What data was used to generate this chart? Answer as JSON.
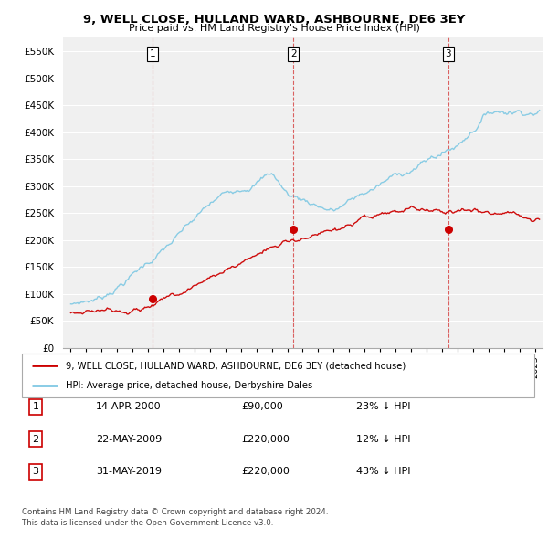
{
  "title": "9, WELL CLOSE, HULLAND WARD, ASHBOURNE, DE6 3EY",
  "subtitle": "Price paid vs. HM Land Registry's House Price Index (HPI)",
  "ylabel_ticks": [
    "£0",
    "£50K",
    "£100K",
    "£150K",
    "£200K",
    "£250K",
    "£300K",
    "£350K",
    "£400K",
    "£450K",
    "£500K",
    "£550K"
  ],
  "ytick_values": [
    0,
    50000,
    100000,
    150000,
    200000,
    250000,
    300000,
    350000,
    400000,
    450000,
    500000,
    550000
  ],
  "sales": [
    {
      "date": 2000.29,
      "price": 90000,
      "label": "1"
    },
    {
      "date": 2009.39,
      "price": 220000,
      "label": "2"
    },
    {
      "date": 2019.41,
      "price": 220000,
      "label": "3"
    }
  ],
  "vline_dates": [
    2000.29,
    2009.39,
    2019.41
  ],
  "hpi_color": "#7ec8e3",
  "sale_color": "#cc0000",
  "vline_color": "#cc0000",
  "legend_sale_label": "9, WELL CLOSE, HULLAND WARD, ASHBOURNE, DE6 3EY (detached house)",
  "legend_hpi_label": "HPI: Average price, detached house, Derbyshire Dales",
  "table_rows": [
    {
      "num": "1",
      "date": "14-APR-2000",
      "price": "£90,000",
      "change": "23% ↓ HPI"
    },
    {
      "num": "2",
      "date": "22-MAY-2009",
      "price": "£220,000",
      "change": "12% ↓ HPI"
    },
    {
      "num": "3",
      "date": "31-MAY-2019",
      "price": "£220,000",
      "change": "43% ↓ HPI"
    }
  ],
  "footer": "Contains HM Land Registry data © Crown copyright and database right 2024.\nThis data is licensed under the Open Government Licence v3.0.",
  "xlim": [
    1994.5,
    2025.5
  ],
  "ylim": [
    0,
    575000
  ],
  "bg_color": "#f0f0f0"
}
